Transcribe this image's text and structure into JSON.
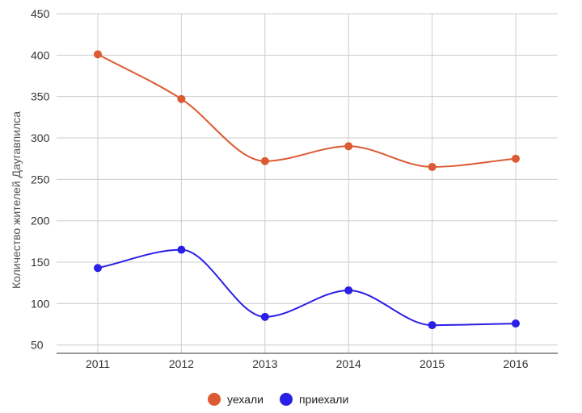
{
  "chart_data": {
    "type": "line",
    "categories": [
      "2011",
      "2012",
      "2013",
      "2014",
      "2015",
      "2016"
    ],
    "series": [
      {
        "name": "уехали",
        "values": [
          401,
          347,
          272,
          290,
          265,
          275
        ],
        "color": "#dc5a33"
      },
      {
        "name": "приехали",
        "values": [
          143,
          165,
          84,
          116,
          74,
          76
        ],
        "color": "#2a1fe6"
      }
    ],
    "ylabel": "Количество жителей Даугавпилса",
    "xlabel": "",
    "ylim": [
      40,
      450
    ],
    "yticks": [
      50,
      100,
      150,
      200,
      250,
      300,
      350,
      400,
      450
    ],
    "ytick_labels": [
      "50",
      "100",
      "150",
      "200",
      "250",
      "300",
      "350",
      "400",
      "450"
    ],
    "smooth": true,
    "grid": true,
    "legend": "bottom"
  }
}
